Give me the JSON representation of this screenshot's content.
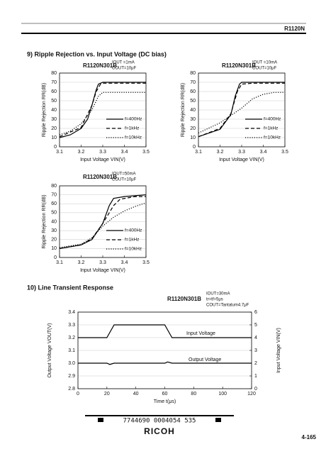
{
  "header": {
    "product": "R1120N"
  },
  "sections": [
    "9) Ripple Rejection vs. Input Voltage (DC bias)",
    "10) Line Transient Response"
  ],
  "footer": {
    "code": "7744690 0004054 535",
    "brand": "RICOH",
    "page": "4-165"
  },
  "chart_data": [
    {
      "type": "line",
      "title": "R1120N301B",
      "conditions": [
        "IOUT =1mA",
        "COUT=10μF"
      ],
      "x_label": "Input Voltage VIN(V)",
      "y_label": "Ripple Rejection RR(dB)",
      "xlim": [
        3.1,
        3.5
      ],
      "xticks": [
        3.1,
        3.2,
        3.3,
        3.4,
        3.5
      ],
      "ylim": [
        0,
        80
      ],
      "yticks": [
        0,
        10,
        20,
        30,
        40,
        50,
        60,
        70,
        80
      ],
      "grid": true,
      "legend": "right",
      "series": [
        {
          "name": "f=400Hz",
          "color": "#000",
          "dash": "solid",
          "x": [
            3.1,
            3.15,
            3.2,
            3.23,
            3.25,
            3.27,
            3.28,
            3.3,
            3.5
          ],
          "values": [
            10,
            13,
            20,
            30,
            45,
            62,
            68,
            70,
            70
          ]
        },
        {
          "name": "f=1kHz",
          "color": "#000",
          "dash": "dashed",
          "x": [
            3.1,
            3.2,
            3.25,
            3.27,
            3.29,
            3.3,
            3.5
          ],
          "values": [
            11,
            21,
            45,
            60,
            68,
            69,
            69
          ]
        },
        {
          "name": "f=10kHz",
          "color": "#000",
          "dash": "dotted",
          "x": [
            3.1,
            3.15,
            3.2,
            3.25,
            3.28,
            3.3,
            3.5
          ],
          "values": [
            13,
            17,
            25,
            40,
            55,
            59,
            59
          ]
        }
      ]
    },
    {
      "type": "line",
      "title": "R1120N301B",
      "conditions": [
        "IOUT =10mA",
        "COUT=10μF"
      ],
      "x_label": "Input Voltage VIN(V)",
      "y_label": "Ripple Rejection RR(dB)",
      "xlim": [
        3.1,
        3.5
      ],
      "xticks": [
        3.1,
        3.2,
        3.3,
        3.4,
        3.5
      ],
      "ylim": [
        0,
        80
      ],
      "yticks": [
        0,
        10,
        20,
        30,
        40,
        50,
        60,
        70,
        80
      ],
      "grid": true,
      "legend": "right",
      "series": [
        {
          "name": "f=400Hz",
          "color": "#000",
          "dash": "solid",
          "x": [
            3.1,
            3.2,
            3.25,
            3.27,
            3.29,
            3.3,
            3.5
          ],
          "values": [
            11,
            19,
            35,
            55,
            68,
            70,
            70
          ]
        },
        {
          "name": "f=1kHz",
          "color": "#000",
          "dash": "dashed",
          "x": [
            3.1,
            3.2,
            3.25,
            3.28,
            3.3,
            3.35,
            3.5
          ],
          "values": [
            11,
            20,
            36,
            60,
            68,
            69,
            69
          ]
        },
        {
          "name": "f=10kHz",
          "color": "#000",
          "dash": "dotted",
          "x": [
            3.1,
            3.2,
            3.3,
            3.35,
            3.4,
            3.45,
            3.5
          ],
          "values": [
            15,
            26,
            42,
            52,
            57,
            59,
            59
          ]
        }
      ]
    },
    {
      "type": "line",
      "title": "R1120N301B",
      "conditions": [
        "IOUT=50mA",
        "COUT=10μF"
      ],
      "x_label": "Input Voltage VIN(V)",
      "y_label": "Ripple Rejection RR(dB)",
      "xlim": [
        3.1,
        3.5
      ],
      "xticks": [
        3.1,
        3.2,
        3.3,
        3.4,
        3.5
      ],
      "ylim": [
        0,
        80
      ],
      "yticks": [
        0,
        10,
        20,
        30,
        40,
        50,
        60,
        70,
        80
      ],
      "grid": true,
      "legend": "right",
      "series": [
        {
          "name": "f=400Hz",
          "color": "#000",
          "dash": "solid",
          "x": [
            3.1,
            3.2,
            3.25,
            3.3,
            3.33,
            3.35,
            3.4,
            3.5
          ],
          "values": [
            10,
            14,
            20,
            38,
            58,
            66,
            68,
            70
          ]
        },
        {
          "name": "f=1kHz",
          "color": "#000",
          "dash": "dashed",
          "x": [
            3.1,
            3.2,
            3.25,
            3.3,
            3.35,
            3.38,
            3.45,
            3.5
          ],
          "values": [
            10,
            14,
            21,
            38,
            58,
            65,
            68,
            68
          ]
        },
        {
          "name": "f=10kHz",
          "color": "#000",
          "dash": "dotted",
          "x": [
            3.1,
            3.2,
            3.25,
            3.3,
            3.35,
            3.4,
            3.45,
            3.5
          ],
          "values": [
            11,
            15,
            22,
            35,
            45,
            52,
            57,
            61
          ]
        }
      ]
    },
    {
      "type": "line",
      "title": "R1120N301B",
      "conditions": [
        "IOUT=30mA",
        "tr=tf=5μs",
        "COUT=Tantalum4.7μF"
      ],
      "x_label": "Time t(μs)",
      "y_label": "Output Voltage VOUT(V)",
      "y2_label": "Input Voltage VIN(V)",
      "xlim": [
        0,
        120
      ],
      "xticks": [
        0,
        20,
        40,
        60,
        80,
        100,
        120
      ],
      "ylim": [
        2.8,
        3.4
      ],
      "yticks": [
        2.8,
        2.9,
        {
          "value": 3,
          "label": "3.0"
        },
        3.1,
        3.2,
        3.3,
        3.4
      ],
      "y2lim": [
        0,
        6
      ],
      "y2ticks": [
        0,
        1,
        2,
        3,
        4,
        5,
        6
      ],
      "grid": true,
      "legend": "labels",
      "series": [
        {
          "name": "Input Voltage",
          "color": "#000",
          "dash": "solid",
          "axis": "y2",
          "x": [
            0,
            20,
            25,
            60,
            65,
            120
          ],
          "values": [
            4,
            4,
            5,
            5,
            4,
            4
          ]
        },
        {
          "name": "Output Voltage",
          "color": "#000",
          "dash": "solid",
          "x": [
            0,
            20,
            22,
            25,
            60,
            62,
            65,
            120
          ],
          "values": [
            3.0,
            3.0,
            2.99,
            3.0,
            3.0,
            3.01,
            3.0,
            3.0
          ]
        }
      ]
    }
  ]
}
